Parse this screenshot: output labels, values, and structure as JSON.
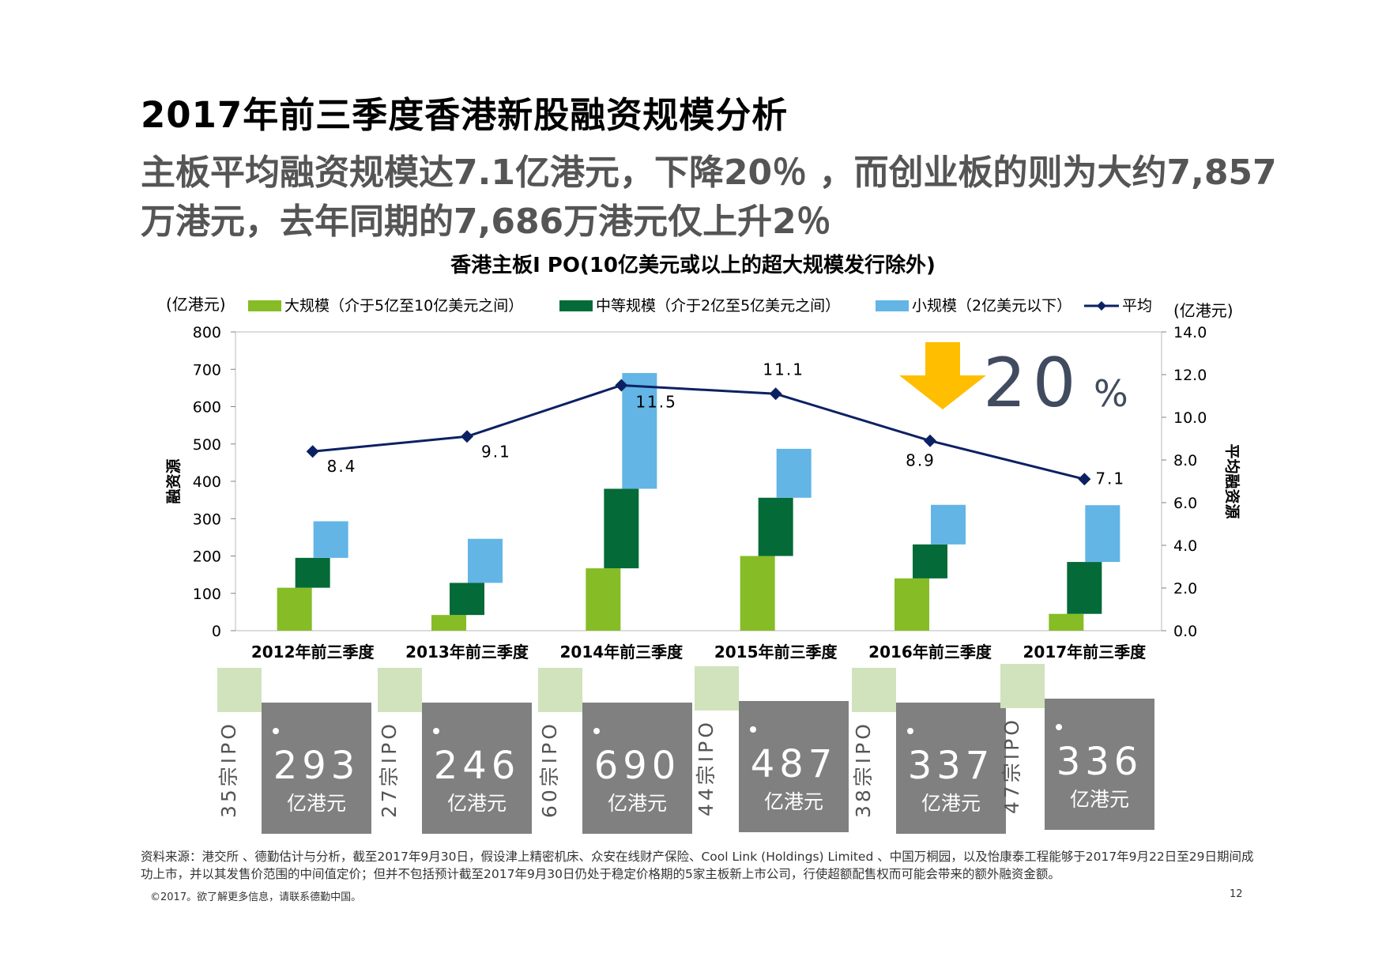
{
  "page": {
    "title": "2017年前三季度香港新股融资规模分析",
    "subtitle": "主板平均融资规模达7.1亿港元，下降20％ ，而创业板的则为大约7,857万港元，去年同期的7,686万港元仅上升2％",
    "source": "资料来源：港交所 、德勤估计与分析，截至2017年9月30日，假设津上精密机床、众安在线财产保险、Cool Link (Holdings) Limited 、中国万桐园，以及怡康泰工程能够于2017年9月22日至29日期间成功上市，并以其发售价范围的中间值定价；但并不包括预计截至2017年9月30日仍处于稳定价格期的5家主板新上市公司，行使超额配售权而可能会带来的额外融资金额。",
    "copyright": "©2017。欲了解更多信息，请联系德勤中国。",
    "page_number": "12"
  },
  "chart_data": {
    "type": "bar",
    "stacked": "floating",
    "title": "香港主板I PO(10亿美元或以上的超大规模发行除外)",
    "ylabel_left": "融资源",
    "ylabel_right": "平均融资源",
    "unit_left": "(亿港元)",
    "unit_right": "(亿港元)",
    "ylim_left": [
      0,
      800
    ],
    "ylim_right": [
      0,
      14
    ],
    "yticks_left": [
      "0",
      "100",
      "200",
      "300",
      "400",
      "500",
      "600",
      "700",
      "800"
    ],
    "yticks_right": [
      "0.0",
      "2.0",
      "4.0",
      "6.0",
      "8.0",
      "10.0",
      "12.0",
      "14.0"
    ],
    "categories": [
      "2012年前三季度",
      "2013年前三季度",
      "2014年前三季度",
      "2015年前三季度",
      "2016年前三季度",
      "2017年前三季度"
    ],
    "series": [
      {
        "name": "大规模（介于5亿至10亿美元之间）",
        "color": "#86bc25",
        "low": [
          0,
          0,
          0,
          0,
          0,
          0
        ],
        "high": [
          115,
          42,
          167,
          200,
          140,
          45
        ]
      },
      {
        "name": "中等规模（介于2亿至5亿美元之间）",
        "color": "#046a38",
        "low": [
          115,
          42,
          167,
          200,
          140,
          45
        ],
        "high": [
          195,
          128,
          380,
          356,
          231,
          184
        ]
      },
      {
        "name": "小规模（2亿美元以下）",
        "color": "#62b5e5",
        "low": [
          195,
          128,
          380,
          356,
          231,
          184
        ],
        "high": [
          293,
          246,
          690,
          487,
          337,
          336
        ]
      }
    ],
    "line": {
      "name": "平均",
      "color": "#0c2163",
      "values": [
        8.4,
        9.1,
        11.5,
        11.1,
        8.9,
        7.1
      ],
      "labels": [
        "8.4",
        "9.1",
        "11.5",
        "11.1",
        "8.9",
        "7.1"
      ]
    },
    "annotation": {
      "text": "20",
      "suffix": "%",
      "arrow_color": "#ffbe00",
      "text_color": "#404b5f"
    }
  },
  "ipo_cards": [
    {
      "count": "35宗IPO",
      "value": "293",
      "unit": "亿港元"
    },
    {
      "count": "27宗IPO",
      "value": "246",
      "unit": "亿港元"
    },
    {
      "count": "60宗IPO",
      "value": "690",
      "unit": "亿港元"
    },
    {
      "count": "44宗IPO",
      "value": "487",
      "unit": "亿港元"
    },
    {
      "count": "38宗IPO",
      "value": "337",
      "unit": "亿港元"
    },
    {
      "count": "47宗IPO",
      "value": "336",
      "unit": "亿港元"
    }
  ]
}
